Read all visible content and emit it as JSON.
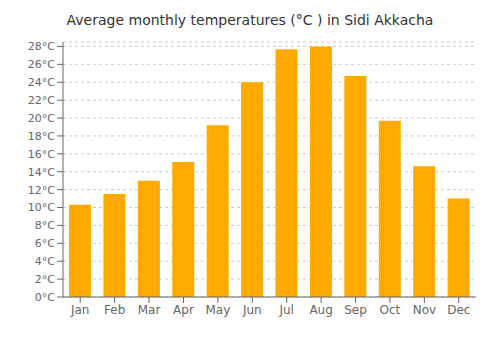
{
  "chart_data": {
    "type": "bar",
    "title": "Average monthly temperatures (°C ) in Sidi Akkacha",
    "categories": [
      "Jan",
      "Feb",
      "Mar",
      "Apr",
      "May",
      "Jun",
      "Jul",
      "Aug",
      "Sep",
      "Oct",
      "Nov",
      "Dec"
    ],
    "values": [
      10.3,
      11.5,
      13.0,
      15.1,
      19.2,
      24.0,
      27.7,
      28.0,
      24.7,
      19.7,
      14.6,
      11.0
    ],
    "color": "#FFAA00",
    "ylim": [
      0,
      28.5
    ],
    "yticks": [
      {
        "value": 0,
        "label": "0°C"
      },
      {
        "value": 2,
        "label": "2°C"
      },
      {
        "value": 4,
        "label": "4°C"
      },
      {
        "value": 6,
        "label": "6°C"
      },
      {
        "value": 8,
        "label": "8°C"
      },
      {
        "value": 10,
        "label": "10°C"
      },
      {
        "value": 12,
        "label": "12°C"
      },
      {
        "value": 14,
        "label": "14°C"
      },
      {
        "value": 16,
        "label": "16°C"
      },
      {
        "value": 18,
        "label": "18°C"
      },
      {
        "value": 20,
        "label": "20°C"
      },
      {
        "value": 22,
        "label": "22°C"
      },
      {
        "value": 24,
        "label": "24°C"
      },
      {
        "value": 26,
        "label": "26°C"
      },
      {
        "value": 28,
        "label": "28°C"
      }
    ],
    "grid": true
  }
}
